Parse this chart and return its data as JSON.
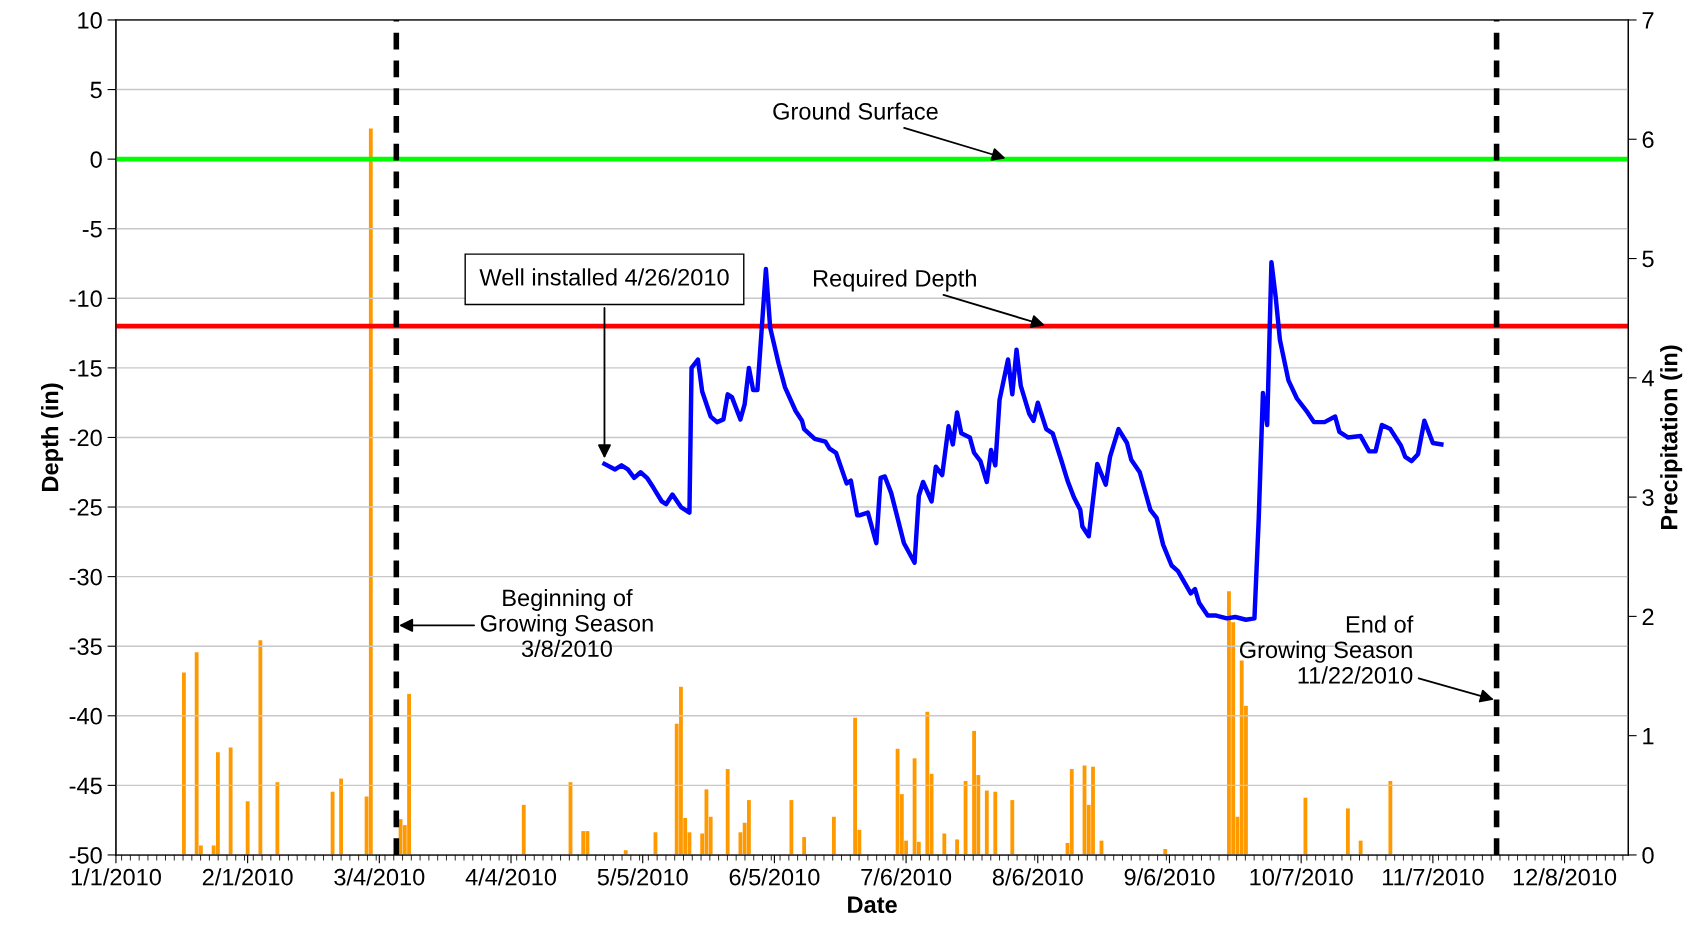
{
  "chart_data": {
    "type": "line",
    "xlabel": "Date",
    "ylabel": "Depth (in)",
    "y2label": "Precipitation (in)",
    "xlim": [
      "2010-01-01",
      "2010-12-23"
    ],
    "xticks": [
      {
        "value": "2010-01-01",
        "label": "1/1/2010"
      },
      {
        "value": "2010-02-01",
        "label": "2/1/2010"
      },
      {
        "value": "2010-03-04",
        "label": "3/4/2010"
      },
      {
        "value": "2010-04-04",
        "label": "4/4/2010"
      },
      {
        "value": "2010-05-05",
        "label": "5/5/2010"
      },
      {
        "value": "2010-06-05",
        "label": "6/5/2010"
      },
      {
        "value": "2010-07-06",
        "label": "7/6/2010"
      },
      {
        "value": "2010-08-06",
        "label": "8/6/2010"
      },
      {
        "value": "2010-09-06",
        "label": "9/6/2010"
      },
      {
        "value": "2010-10-07",
        "label": "10/7/2010"
      },
      {
        "value": "2010-11-07",
        "label": "11/7/2010"
      },
      {
        "value": "2010-12-08",
        "label": "12/8/2010"
      }
    ],
    "ylim": [
      -50,
      10
    ],
    "yticks": [
      -50,
      -45,
      -40,
      -35,
      -30,
      -25,
      -20,
      -15,
      -10,
      -5,
      0,
      5,
      10
    ],
    "y2lim": [
      0,
      7
    ],
    "y2ticks": [
      0,
      1,
      2,
      3,
      4,
      5,
      6,
      7
    ],
    "grid": "y",
    "series": [
      {
        "type": "bar",
        "axis": "y2",
        "color": "#ff9900",
        "x": [
          "2010-01-17",
          "2010-01-20",
          "2010-01-21",
          "2010-01-24",
          "2010-01-25",
          "2010-01-28",
          "2010-02-01",
          "2010-02-04",
          "2010-02-08",
          "2010-02-21",
          "2010-02-23",
          "2010-03-01",
          "2010-03-02",
          "2010-03-09",
          "2010-03-10",
          "2010-03-11",
          "2010-04-07",
          "2010-04-18",
          "2010-04-21",
          "2010-04-22",
          "2010-05-01",
          "2010-05-08",
          "2010-05-13",
          "2010-05-14",
          "2010-05-15",
          "2010-05-16",
          "2010-05-19",
          "2010-05-20",
          "2010-05-21",
          "2010-05-25",
          "2010-05-28",
          "2010-05-29",
          "2010-05-30",
          "2010-06-09",
          "2010-06-12",
          "2010-06-19",
          "2010-06-24",
          "2010-06-25",
          "2010-07-04",
          "2010-07-05",
          "2010-07-06",
          "2010-07-08",
          "2010-07-09",
          "2010-07-11",
          "2010-07-12",
          "2010-07-15",
          "2010-07-18",
          "2010-07-20",
          "2010-07-22",
          "2010-07-23",
          "2010-07-25",
          "2010-07-27",
          "2010-07-31",
          "2010-08-13",
          "2010-08-14",
          "2010-08-17",
          "2010-08-18",
          "2010-08-19",
          "2010-08-21",
          "2010-09-05",
          "2010-09-20",
          "2010-09-21",
          "2010-09-22",
          "2010-09-23",
          "2010-09-24",
          "2010-10-08",
          "2010-10-18",
          "2010-10-21",
          "2010-10-28"
        ],
        "values": [
          1.53,
          1.7,
          0.08,
          0.08,
          0.86,
          0.9,
          0.45,
          1.8,
          0.61,
          0.53,
          0.64,
          0.49,
          6.09,
          0.3,
          0.25,
          1.35,
          0.42,
          0.61,
          0.2,
          0.2,
          0.04,
          0.19,
          1.1,
          1.41,
          0.31,
          0.19,
          0.18,
          0.55,
          0.32,
          0.72,
          0.19,
          0.27,
          0.46,
          0.46,
          0.15,
          0.32,
          1.15,
          0.21,
          0.89,
          0.51,
          0.12,
          0.81,
          0.11,
          1.2,
          0.68,
          0.18,
          0.13,
          0.62,
          1.04,
          0.67,
          0.54,
          0.53,
          0.46,
          0.1,
          0.72,
          0.75,
          0.42,
          0.74,
          0.12,
          0.05,
          2.21,
          1.95,
          0.32,
          1.63,
          1.25,
          0.48,
          0.39,
          0.12,
          0.62
        ]
      },
      {
        "axis": "y",
        "color": "#0000ff",
        "line_style": "solid",
        "x": [
          "2010-04-26",
          "2010-04-28T12:00",
          "2010-04-30",
          "2010-05-01T12:00",
          "2010-05-03",
          "2010-05-04T12:00",
          "2010-05-06",
          "2010-05-07T12:00",
          "2010-05-09T12:00",
          "2010-05-10T12:00",
          "2010-05-12",
          "2010-05-14",
          "2010-05-16",
          "2010-05-16T12:00",
          "2010-05-18",
          "2010-05-19",
          "2010-05-21",
          "2010-05-22T12:00",
          "2010-05-24",
          "2010-05-25",
          "2010-05-26",
          "2010-05-28",
          "2010-05-29",
          "2010-05-30",
          "2010-05-31",
          "2010-06-01",
          "2010-06-03",
          "2010-06-04",
          "2010-06-06",
          "2010-06-07T12:00",
          "2010-06-10",
          "2010-06-11T12:00",
          "2010-06-12",
          "2010-06-14T12:00",
          "2010-06-17",
          "2010-06-18",
          "2010-06-19T12:00",
          "2010-06-22",
          "2010-06-23",
          "2010-06-24T12:00",
          "2010-06-25",
          "2010-06-27",
          "2010-06-29",
          "2010-06-30",
          "2010-07-01",
          "2010-07-02T12:00",
          "2010-07-05T12:00",
          "2010-07-08",
          "2010-07-09",
          "2010-07-10",
          "2010-07-12",
          "2010-07-13",
          "2010-07-14T12:00",
          "2010-07-16",
          "2010-07-17",
          "2010-07-18",
          "2010-07-19",
          "2010-07-21",
          "2010-07-22",
          "2010-07-23T12:00",
          "2010-07-25",
          "2010-07-26",
          "2010-07-27",
          "2010-07-28",
          "2010-07-30",
          "2010-07-31",
          "2010-08-01",
          "2010-08-02",
          "2010-08-04",
          "2010-08-05",
          "2010-08-06",
          "2010-08-08",
          "2010-08-09T12:00",
          "2010-08-11T12:00",
          "2010-08-13",
          "2010-08-14T12:00",
          "2010-08-16",
          "2010-08-16T12:00",
          "2010-08-18",
          "2010-08-20",
          "2010-08-22",
          "2010-08-23",
          "2010-08-25",
          "2010-08-27",
          "2010-08-28",
          "2010-08-30",
          "2010-09-01T12:00",
          "2010-09-03",
          "2010-09-04T12:00",
          "2010-09-06T12:00",
          "2010-09-08",
          "2010-09-11",
          "2010-09-12",
          "2010-09-13",
          "2010-09-15",
          "2010-09-17",
          "2010-09-19T12:00",
          "2010-09-21T12:00",
          "2010-09-24",
          "2010-09-26",
          "2010-09-27",
          "2010-09-28",
          "2010-09-29",
          "2010-09-30",
          "2010-10-01",
          "2010-10-02",
          "2010-10-04",
          "2010-10-06",
          "2010-10-08T12:00",
          "2010-10-10",
          "2010-10-12T12:00",
          "2010-10-15",
          "2010-10-16",
          "2010-10-18",
          "2010-10-21",
          "2010-10-23",
          "2010-10-24T12:00",
          "2010-10-26",
          "2010-10-28",
          "2010-10-30T12:00",
          "2010-10-31T12:00",
          "2010-11-02",
          "2010-11-03T12:00",
          "2010-11-05",
          "2010-11-07",
          "2010-11-09"
        ],
        "values": [
          -21.9,
          -22.3,
          -22.0,
          -22.3,
          -22.9,
          -22.5,
          -22.9,
          -23.6,
          -24.6,
          -24.8,
          -24.1,
          -25.0,
          -25.4,
          -15.0,
          -14.4,
          -16.7,
          -18.5,
          -18.9,
          -18.7,
          -16.9,
          -17.1,
          -18.7,
          -17.6,
          -15.0,
          -16.6,
          -16.6,
          -7.9,
          -12.1,
          -14.7,
          -16.4,
          -18.1,
          -18.8,
          -19.4,
          -20.1,
          -20.3,
          -20.8,
          -21.1,
          -23.3,
          -23.1,
          -25.6,
          -25.6,
          -25.4,
          -27.6,
          -22.9,
          -22.8,
          -24.0,
          -27.6,
          -29.0,
          -24.2,
          -23.2,
          -24.6,
          -22.1,
          -22.7,
          -19.2,
          -20.5,
          -18.2,
          -19.7,
          -20.0,
          -21.1,
          -21.7,
          -23.2,
          -20.9,
          -22.0,
          -17.3,
          -14.4,
          -16.9,
          -13.7,
          -16.3,
          -18.3,
          -18.8,
          -17.5,
          -19.4,
          -19.7,
          -21.6,
          -23.1,
          -24.3,
          -25.2,
          -26.4,
          -27.1,
          -21.9,
          -23.4,
          -21.4,
          -19.4,
          -20.4,
          -21.6,
          -22.5,
          -25.2,
          -25.8,
          -27.7,
          -29.2,
          -29.6,
          -31.2,
          -30.9,
          -31.9,
          -32.8,
          -32.8,
          -33.0,
          -32.9,
          -33.1,
          -33.0,
          -25.9,
          -16.8,
          -19.1,
          -7.4,
          -9.9,
          -13.0,
          -15.9,
          -17.2,
          -18.2,
          -18.9,
          -18.9,
          -18.5,
          -19.6,
          -20.0,
          -19.9,
          -21.0,
          -21.0,
          -19.1,
          -19.4,
          -20.6,
          -21.4,
          -21.7,
          -21.2,
          -18.8,
          -20.4,
          -20.5
        ]
      }
    ],
    "ref_lines": [
      {
        "axis": "y",
        "value": 0,
        "label": "Ground Surface",
        "color": "#00ff00",
        "line_style": "solid"
      },
      {
        "axis": "y",
        "value": -12,
        "label": "Required Depth",
        "color": "#ff0000",
        "line_style": "solid"
      },
      {
        "axis": "x",
        "value": "2010-03-08",
        "label": "Beginning of\nGrowing Season\n3/8/2010",
        "color": "#000000",
        "line_style": "dashed"
      },
      {
        "axis": "x",
        "value": "2010-11-22",
        "label": "End of\nGrowing Season\n11/22/2010",
        "color": "#000000",
        "line_style": "dashed"
      }
    ],
    "annotations": [
      {
        "text": "Well installed 4/26/2010",
        "x": "2010-04-26",
        "y": -21.9
      }
    ]
  }
}
